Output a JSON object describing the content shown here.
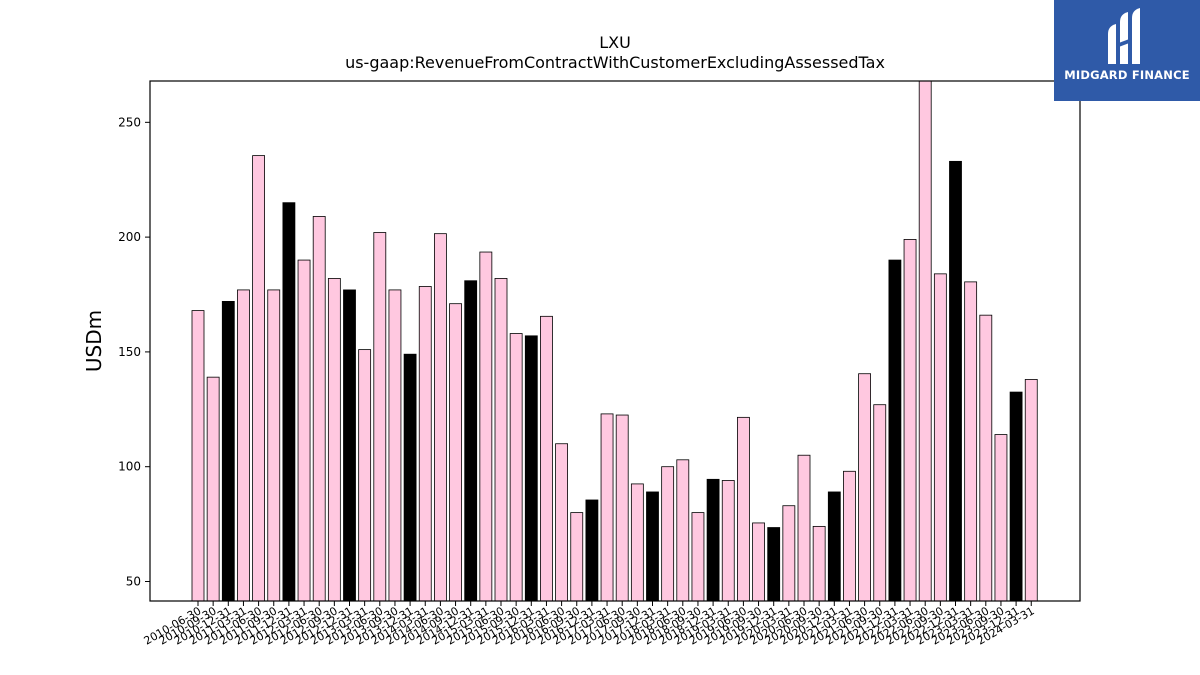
{
  "chart_data": {
    "type": "bar",
    "title": "LXU",
    "subtitle": "us-gaap:RevenueFromContractWithCustomerExcludingAssessedTax",
    "xlabel": "",
    "ylabel": "USDm",
    "ylim": [
      41.5,
      268
    ],
    "yticks": [
      50,
      100,
      150,
      200,
      250
    ],
    "grid": false,
    "colors": {
      "regular": "#ffc8e0",
      "highlight": "#000000",
      "edge": "#000000"
    },
    "categories": [
      "2010-06-30",
      "2010-09-30",
      "2010-12-31",
      "2011-03-31",
      "2011-06-30",
      "2011-09-30",
      "2011-12-31",
      "2012-03-31",
      "2012-06-30",
      "2012-09-30",
      "2012-12-31",
      "2013-03-31",
      "2013-06-30",
      "2013-09-30",
      "2013-12-31",
      "2014-03-31",
      "2014-06-30",
      "2014-09-30",
      "2014-12-31",
      "2015-03-31",
      "2015-06-30",
      "2015-09-30",
      "2015-12-31",
      "2016-03-31",
      "2016-06-30",
      "2016-09-30",
      "2016-12-31",
      "2017-03-31",
      "2017-06-30",
      "2017-09-30",
      "2017-12-31",
      "2018-03-31",
      "2018-06-30",
      "2018-09-30",
      "2018-12-31",
      "2019-03-31",
      "2019-06-30",
      "2019-09-30",
      "2019-12-31",
      "2020-03-31",
      "2020-06-30",
      "2020-09-30",
      "2020-12-31",
      "2021-03-31",
      "2021-06-30",
      "2021-09-30",
      "2021-12-31",
      "2022-03-31",
      "2022-06-30",
      "2022-09-30",
      "2022-12-31",
      "2023-03-31",
      "2023-06-30",
      "2023-09-30",
      "2023-12-31",
      "2024-03-31"
    ],
    "values": [
      168,
      139,
      172,
      177,
      235.5,
      177,
      215,
      190,
      209,
      182,
      177,
      151,
      202,
      177,
      149,
      178.5,
      201.5,
      171,
      181,
      193.5,
      182,
      158,
      157,
      165.5,
      110,
      80,
      85.5,
      123,
      122.5,
      92.5,
      89,
      100,
      103,
      80,
      94.5,
      94,
      121.5,
      75.5,
      73.5,
      83,
      105,
      74,
      89,
      98,
      140.5,
      127,
      190,
      199,
      270,
      184,
      233,
      180.5,
      166,
      114,
      132.5,
      138
    ],
    "highlight": [
      false,
      false,
      true,
      false,
      false,
      false,
      true,
      false,
      false,
      false,
      true,
      false,
      false,
      false,
      true,
      false,
      false,
      false,
      true,
      false,
      false,
      false,
      true,
      false,
      false,
      false,
      true,
      false,
      false,
      false,
      true,
      false,
      false,
      false,
      true,
      false,
      false,
      false,
      true,
      false,
      false,
      false,
      true,
      false,
      false,
      false,
      true,
      false,
      false,
      false,
      true,
      false,
      false,
      false,
      true,
      false
    ]
  },
  "logo": {
    "label": "MIDGARD FINANCE",
    "color": "#2f5aa8"
  }
}
